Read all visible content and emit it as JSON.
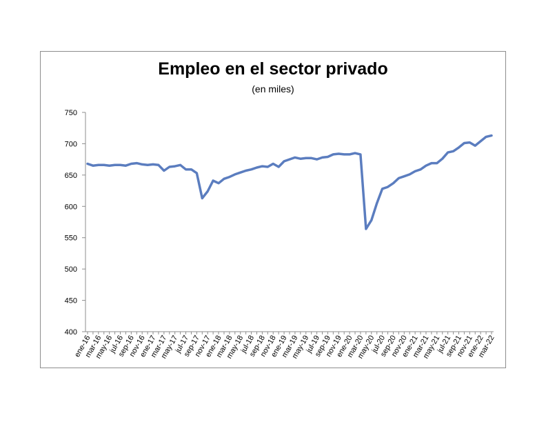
{
  "chart_data": {
    "type": "line",
    "title": "Empleo en el sector privado",
    "subtitle": "(en miles)",
    "xlabel": "",
    "ylabel": "",
    "ylim": [
      400,
      750
    ],
    "yticks": [
      400,
      450,
      500,
      550,
      600,
      650,
      700,
      750
    ],
    "x_tick_labels": [
      "ene-16",
      "mar-16",
      "may-16",
      "jul-16",
      "sep-16",
      "nov-16",
      "ene-17",
      "mar-17",
      "may-17",
      "jul-17",
      "sep-17",
      "nov-17",
      "ene-18",
      "mar-18",
      "may-18",
      "jul-18",
      "sep-18",
      "nov-18",
      "ene-19",
      "mar-19",
      "may-19",
      "jul-19",
      "sep-19",
      "nov-19",
      "ene-20",
      "mar-20",
      "may-20",
      "jul-20",
      "sep-20",
      "nov-20",
      "ene-21",
      "mar-21",
      "may-21",
      "jul-21",
      "sep-21",
      "nov-21",
      "ene-22",
      "mar-22"
    ],
    "x": [
      "ene-16",
      "feb-16",
      "mar-16",
      "abr-16",
      "may-16",
      "jun-16",
      "jul-16",
      "ago-16",
      "sep-16",
      "oct-16",
      "nov-16",
      "dic-16",
      "ene-17",
      "feb-17",
      "mar-17",
      "abr-17",
      "may-17",
      "jun-17",
      "jul-17",
      "ago-17",
      "sep-17",
      "oct-17",
      "nov-17",
      "dic-17",
      "ene-18",
      "feb-18",
      "mar-18",
      "abr-18",
      "may-18",
      "jun-18",
      "jul-18",
      "ago-18",
      "sep-18",
      "oct-18",
      "nov-18",
      "dic-18",
      "ene-19",
      "feb-19",
      "mar-19",
      "abr-19",
      "may-19",
      "jun-19",
      "jul-19",
      "ago-19",
      "sep-19",
      "oct-19",
      "nov-19",
      "dic-19",
      "ene-20",
      "feb-20",
      "mar-20",
      "abr-20",
      "may-20",
      "jun-20",
      "jul-20",
      "ago-20",
      "sep-20",
      "oct-20",
      "nov-20",
      "dic-20",
      "ene-21",
      "feb-21",
      "mar-21",
      "abr-21",
      "may-21",
      "jun-21",
      "jul-21",
      "ago-21",
      "sep-21",
      "oct-21",
      "nov-21",
      "dic-21",
      "ene-22",
      "feb-22",
      "mar-22"
    ],
    "series": [
      {
        "color": "#5b7dbf",
        "values": [
          668,
          665,
          666,
          666,
          665,
          666,
          666,
          665,
          668,
          669,
          667,
          666,
          667,
          666,
          657,
          663,
          664,
          666,
          659,
          659,
          653,
          613,
          624,
          641,
          637,
          644,
          647,
          651,
          654,
          657,
          659,
          662,
          664,
          663,
          668,
          663,
          672,
          675,
          678,
          676,
          677,
          677,
          675,
          678,
          679,
          683,
          684,
          683,
          683,
          685,
          683,
          564,
          578,
          605,
          628,
          631,
          637,
          645,
          648,
          651,
          656,
          659,
          665,
          669,
          669,
          676,
          686,
          688,
          694,
          701,
          702,
          697,
          704,
          711,
          713
        ]
      }
    ],
    "grid": false,
    "legend": "none"
  }
}
